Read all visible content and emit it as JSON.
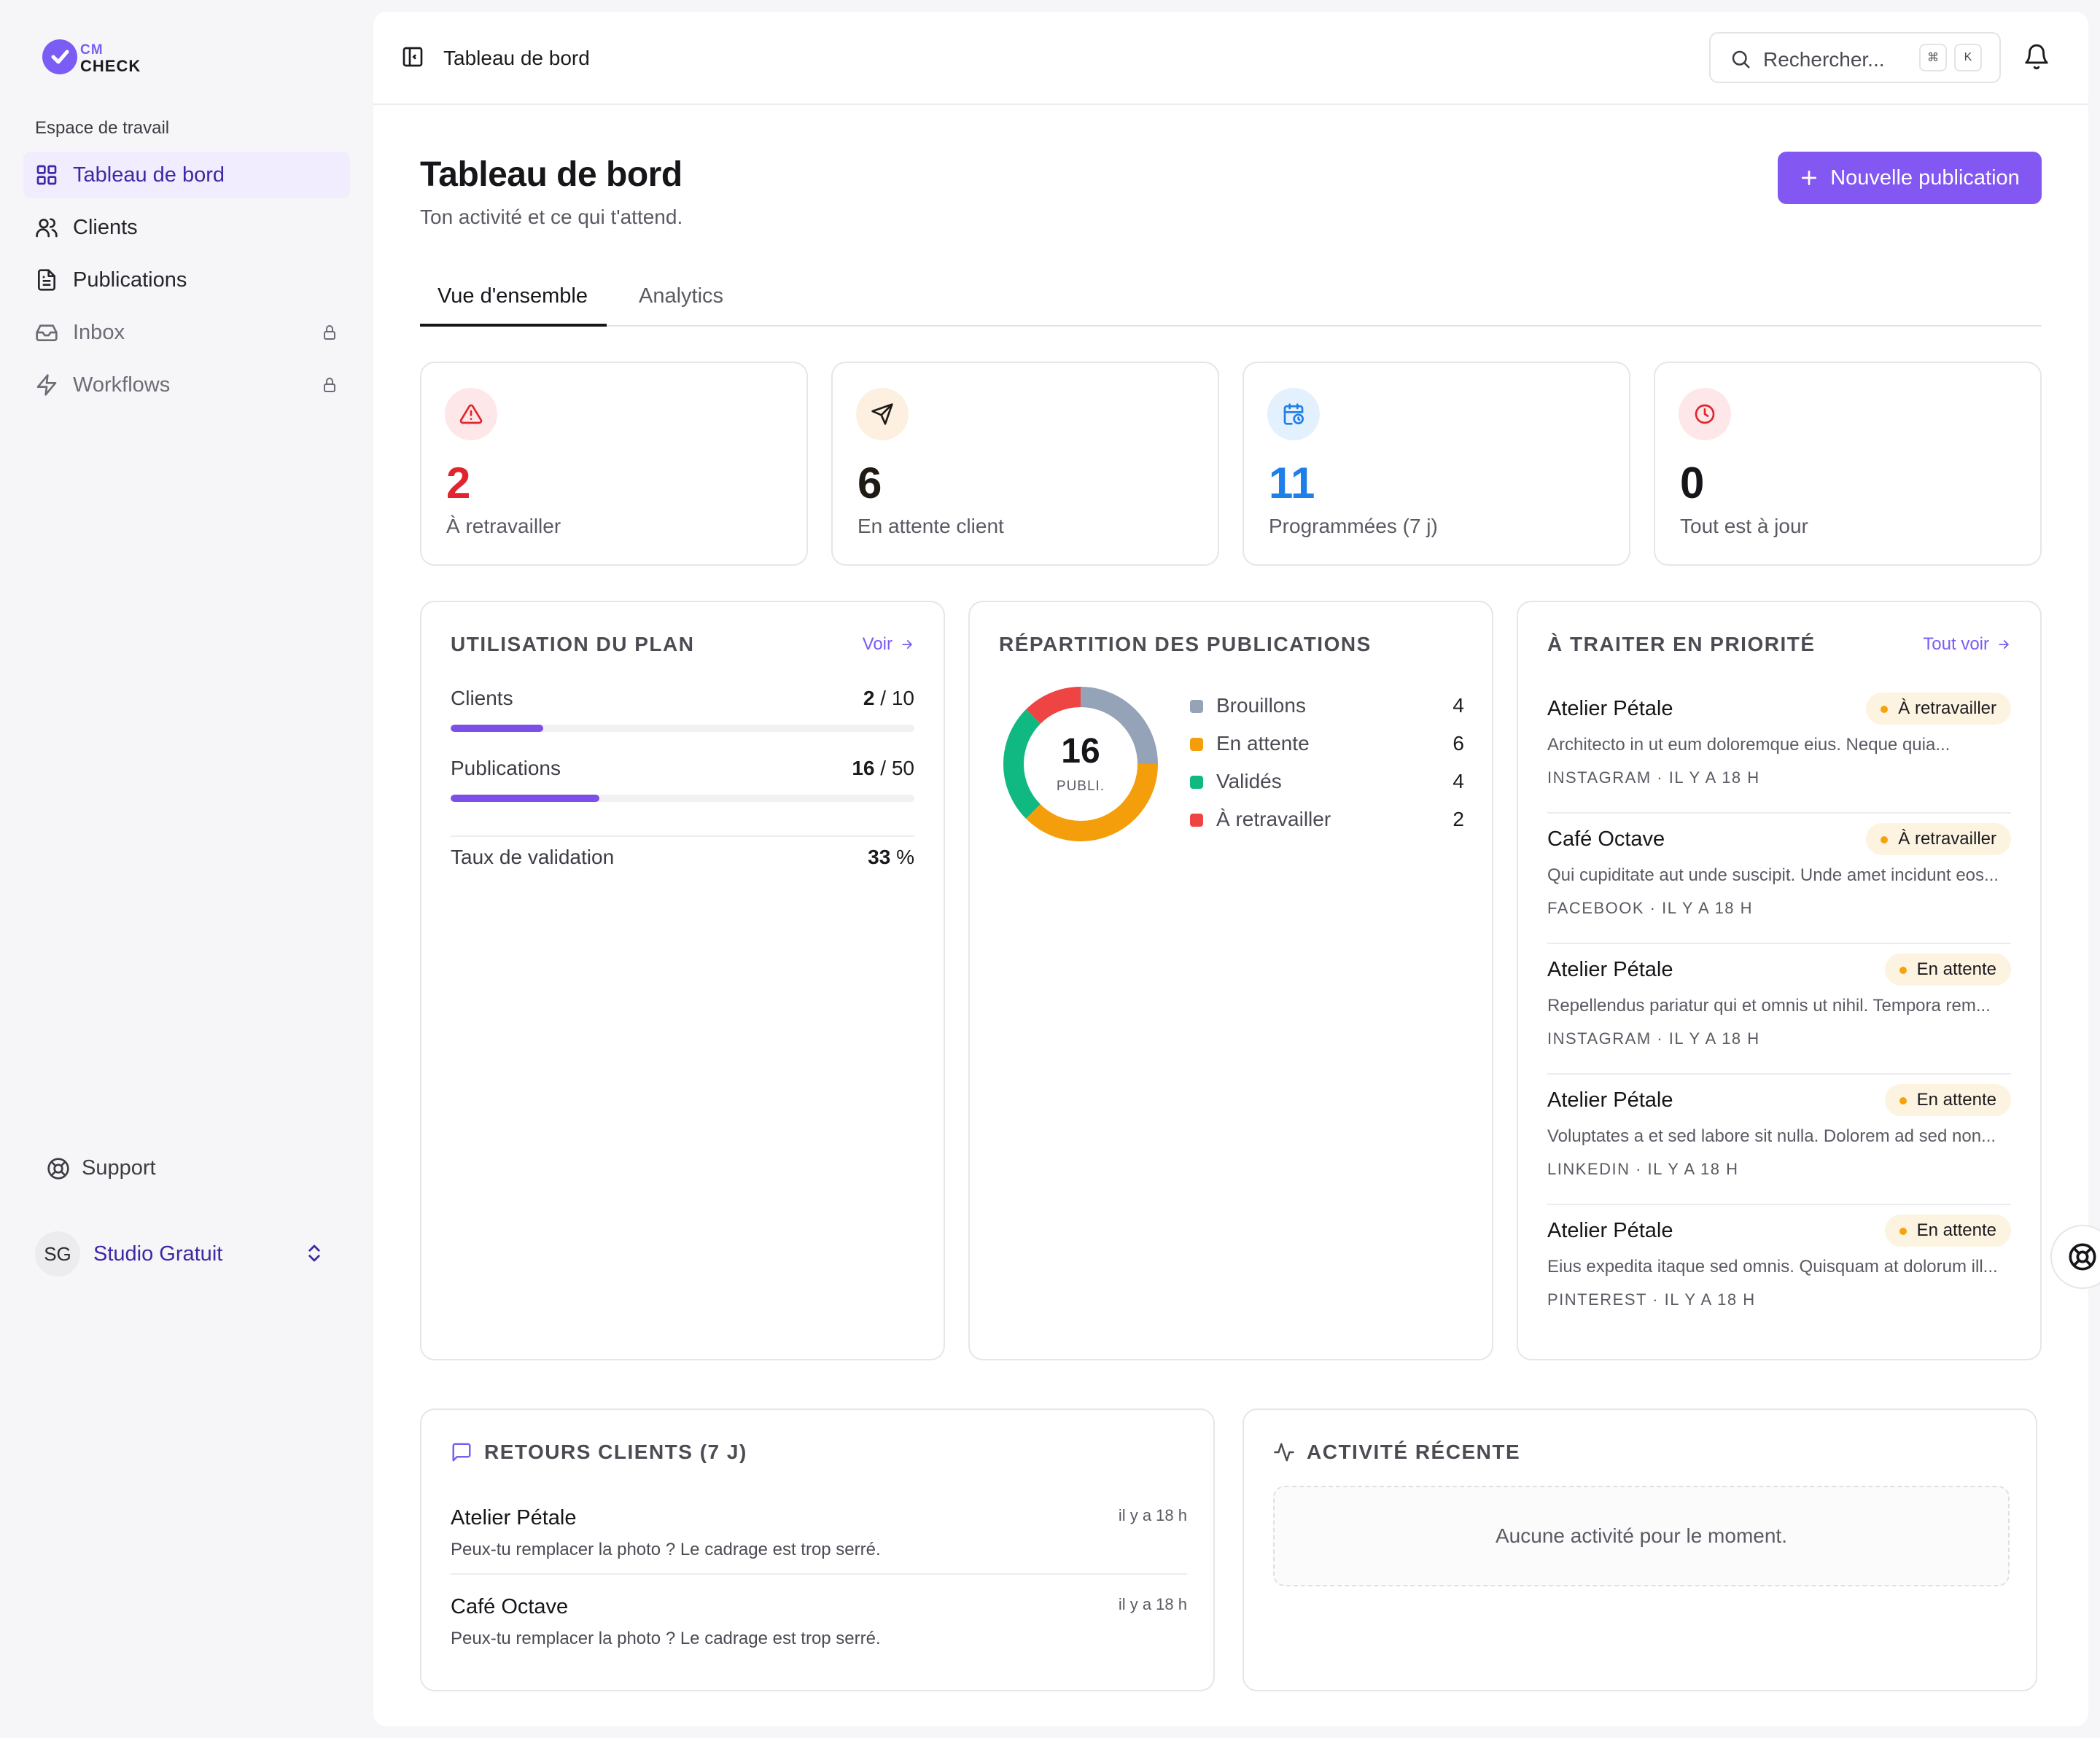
{
  "brand": {
    "top": "CM",
    "bottom": "CHECK",
    "accent": "#7b5cf5"
  },
  "sidebar": {
    "workspace_label": "Espace de travail",
    "items": [
      {
        "label": "Tableau de bord",
        "icon": "grid-icon",
        "active": true,
        "locked": false
      },
      {
        "label": "Clients",
        "icon": "users-icon",
        "active": false,
        "locked": false
      },
      {
        "label": "Publications",
        "icon": "document-icon",
        "active": false,
        "locked": false
      },
      {
        "label": "Inbox",
        "icon": "inbox-icon",
        "active": false,
        "locked": true
      },
      {
        "label": "Workflows",
        "icon": "lightning-icon",
        "active": false,
        "locked": true
      }
    ],
    "support_label": "Support",
    "account": {
      "initials": "SG",
      "name": "Studio Gratuit"
    }
  },
  "topbar": {
    "title": "Tableau de bord",
    "search_placeholder": "Rechercher...",
    "shortcut": [
      "⌘",
      "K"
    ]
  },
  "header": {
    "title": "Tableau de bord",
    "subtitle": "Ton activité et ce qui t'attend.",
    "new_button": "Nouvelle publication"
  },
  "tabs": [
    {
      "label": "Vue d'ensemble",
      "active": true
    },
    {
      "label": "Analytics",
      "active": false
    }
  ],
  "stats": [
    {
      "value": "2",
      "label": "À retravailler",
      "icon": "alert-triangle-icon",
      "color": "#e0252f",
      "bg": "#fde7e8"
    },
    {
      "value": "6",
      "label": "En attente client",
      "icon": "send-icon",
      "color": "#1f1a14",
      "bg": "#fdf0e0"
    },
    {
      "value": "11",
      "label": "Programmées (7 j)",
      "icon": "calendar-clock-icon",
      "color": "#1f7fe8",
      "bg": "#e3f0fd"
    },
    {
      "value": "0",
      "label": "Tout est à jour",
      "icon": "clock-icon",
      "color": "#16161a",
      "bg": "#fde7e8"
    }
  ],
  "plan": {
    "title": "UTILISATION DU PLAN",
    "link": "Voir",
    "rows": [
      {
        "label": "Clients",
        "used": "2",
        "sep": " / ",
        "max": "10",
        "fraction": 0.2
      },
      {
        "label": "Publications",
        "used": "16",
        "sep": " / ",
        "max": "50",
        "fraction": 0.32
      }
    ],
    "validation_label": "Taux de validation",
    "validation_value": "33",
    "validation_unit": " %"
  },
  "distribution": {
    "title": "RÉPARTITION DES PUBLICATIONS",
    "total": "16",
    "total_label": "PUBLI.",
    "segments": [
      {
        "label": "Brouillons",
        "value": 4,
        "color": "#94a3b8"
      },
      {
        "label": "En attente",
        "value": 6,
        "color": "#f59e0b"
      },
      {
        "label": "Validés",
        "value": 4,
        "color": "#10b981"
      },
      {
        "label": "À retravailler",
        "value": 2,
        "color": "#ef4444"
      }
    ]
  },
  "priority": {
    "title": "À TRAITER EN PRIORITÉ",
    "link": "Tout voir",
    "items": [
      {
        "name": "Atelier Pétale",
        "badge": "À retravailler",
        "desc": "Architecto in ut eum doloremque eius. Neque quia...",
        "meta": "INSTAGRAM · IL Y A 18 H"
      },
      {
        "name": "Café Octave",
        "badge": "À retravailler",
        "desc": "Qui cupiditate aut unde suscipit. Unde amet incidunt eos...",
        "meta": "FACEBOOK · IL Y A 18 H"
      },
      {
        "name": "Atelier Pétale",
        "badge": "En attente",
        "desc": "Repellendus pariatur qui et omnis ut nihil. Tempora rem...",
        "meta": "INSTAGRAM · IL Y A 18 H"
      },
      {
        "name": "Atelier Pétale",
        "badge": "En attente",
        "desc": "Voluptates a et sed labore sit nulla. Dolorem ad sed non...",
        "meta": "LINKEDIN · IL Y A 18 H"
      },
      {
        "name": "Atelier Pétale",
        "badge": "En attente",
        "desc": "Eius expedita itaque sed omnis. Quisquam at dolorum ill...",
        "meta": "PINTEREST · IL Y A 18 H"
      }
    ]
  },
  "feedback": {
    "title": "RETOURS CLIENTS (7 J)",
    "items": [
      {
        "name": "Atelier Pétale",
        "time": "il y a 18 h",
        "text": "Peux-tu remplacer la photo ? Le cadrage est trop serré."
      },
      {
        "name": "Café Octave",
        "time": "il y a 18 h",
        "text": "Peux-tu remplacer la photo ? Le cadrage est trop serré."
      }
    ]
  },
  "activity": {
    "title": "ACTIVITÉ RÉCENTE",
    "empty": "Aucune activité pour le moment."
  }
}
